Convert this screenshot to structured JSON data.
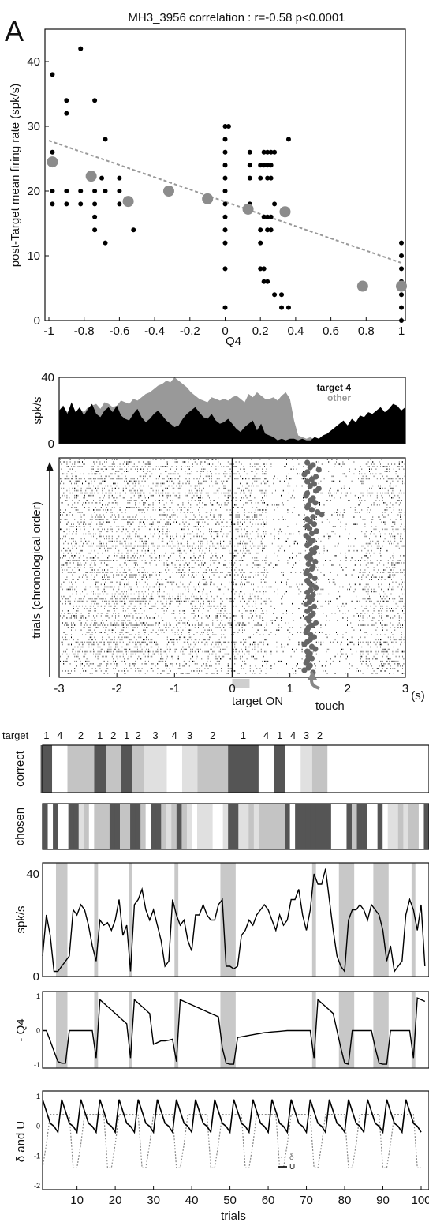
{
  "panel_letter": "A",
  "chart_data": [
    {
      "type": "scatter",
      "title": "MH3_3956 correlation : r=-0.58     p<0.0001",
      "xlabel": "Q4",
      "ylabel": "post-Target mean firing rate (spk/s)",
      "xlim": [
        -1,
        1
      ],
      "ylim": [
        0,
        45
      ],
      "xticks": [
        "-1",
        "-0.8",
        "-0.6",
        "-0.4",
        "-0.2",
        "0",
        "0.2",
        "0.4",
        "0.6",
        "0.8",
        "1"
      ],
      "yticks": [
        "0",
        "10",
        "20",
        "30",
        "40"
      ],
      "series": [
        {
          "marker": "small-black",
          "points": [
            [
              -0.98,
              38
            ],
            [
              -0.98,
              26
            ],
            [
              -0.98,
              20
            ],
            [
              -0.98,
              18
            ],
            [
              -0.9,
              34
            ],
            [
              -0.9,
              32
            ],
            [
              -0.9,
              20
            ],
            [
              -0.9,
              18
            ],
            [
              -0.82,
              42
            ],
            [
              -0.82,
              20
            ],
            [
              -0.82,
              18
            ],
            [
              -0.74,
              34
            ],
            [
              -0.74,
              20
            ],
            [
              -0.74,
              18
            ],
            [
              -0.74,
              16
            ],
            [
              -0.74,
              14
            ],
            [
              -0.7,
              22
            ],
            [
              -0.68,
              28
            ],
            [
              -0.68,
              20
            ],
            [
              -0.68,
              12
            ],
            [
              -0.6,
              22
            ],
            [
              -0.6,
              20
            ],
            [
              -0.6,
              18
            ],
            [
              -0.52,
              14
            ],
            [
              0,
              30
            ],
            [
              0,
              28
            ],
            [
              0,
              26
            ],
            [
              0,
              24
            ],
            [
              0,
              22
            ],
            [
              0,
              20
            ],
            [
              0,
              18
            ],
            [
              0,
              16
            ],
            [
              0,
              14
            ],
            [
              0,
              12
            ],
            [
              0,
              8
            ],
            [
              0,
              2
            ],
            [
              0.02,
              30
            ],
            [
              0.14,
              26
            ],
            [
              0.14,
              24
            ],
            [
              0.14,
              22
            ],
            [
              0.14,
              18
            ],
            [
              0.2,
              24
            ],
            [
              0.2,
              22
            ],
            [
              0.2,
              14
            ],
            [
              0.2,
              12
            ],
            [
              0.2,
              8
            ],
            [
              0.22,
              26
            ],
            [
              0.22,
              24
            ],
            [
              0.22,
              16
            ],
            [
              0.22,
              8
            ],
            [
              0.22,
              6
            ],
            [
              0.24,
              26
            ],
            [
              0.24,
              24
            ],
            [
              0.24,
              22
            ],
            [
              0.24,
              16
            ],
            [
              0.24,
              14
            ],
            [
              0.24,
              6
            ],
            [
              0.26,
              26
            ],
            [
              0.26,
              24
            ],
            [
              0.26,
              22
            ],
            [
              0.26,
              16
            ],
            [
              0.26,
              14
            ],
            [
              0.28,
              26
            ],
            [
              0.28,
              18
            ],
            [
              0.28,
              4
            ],
            [
              0.32,
              4
            ],
            [
              0.32,
              2
            ],
            [
              0.36,
              28
            ],
            [
              0.36,
              2
            ],
            [
              1,
              12
            ],
            [
              1,
              10
            ],
            [
              1,
              8
            ],
            [
              1,
              6
            ],
            [
              1,
              4
            ],
            [
              1,
              2
            ],
            [
              1,
              0
            ]
          ]
        },
        {
          "marker": "large-gray",
          "points": [
            [
              -0.98,
              24.5
            ],
            [
              -0.76,
              22.3
            ],
            [
              -0.55,
              18.4
            ],
            [
              -0.32,
              20
            ],
            [
              -0.1,
              18.8
            ],
            [
              0.13,
              17.2
            ],
            [
              0.34,
              16.8
            ],
            [
              0.78,
              5.3
            ],
            [
              1,
              5.3
            ]
          ]
        },
        {
          "marker": "dashed-fit",
          "points": [
            [
              -1,
              27.8
            ],
            [
              1,
              8.9
            ]
          ]
        }
      ]
    },
    {
      "type": "area",
      "ylabel": "spk/s",
      "yticks": [
        "0",
        "40"
      ],
      "ylim": [
        0,
        40
      ],
      "xlim": [
        -3,
        3
      ],
      "legend_placement": "top-right",
      "series": [
        {
          "name": "target 4",
          "color": "#000000",
          "values": [
            20,
            23,
            18,
            25,
            19,
            22,
            17,
            21,
            24,
            18,
            16,
            20,
            22,
            19,
            23,
            17,
            15,
            14,
            18,
            21,
            16,
            13,
            15,
            18,
            20,
            17,
            14,
            12,
            10,
            11,
            15,
            18,
            20,
            22,
            19,
            16,
            15,
            18,
            14,
            12,
            13,
            15,
            12,
            9,
            7,
            10,
            12,
            14,
            8,
            12,
            6,
            5,
            4,
            2,
            3,
            2,
            3,
            3,
            2,
            3,
            2,
            2,
            4,
            3,
            5,
            6,
            8,
            10,
            12,
            14,
            11,
            15,
            13,
            17,
            16,
            19,
            18,
            20,
            22,
            19,
            21,
            24,
            23,
            20,
            22
          ]
        },
        {
          "name": "other",
          "color": "#999999",
          "values": [
            20,
            22,
            19,
            23,
            18,
            21,
            19,
            22,
            23,
            24,
            21,
            25,
            24,
            22,
            23,
            26,
            25,
            24,
            27,
            26,
            28,
            30,
            31,
            33,
            35,
            36,
            38,
            37,
            40,
            38,
            36,
            34,
            31,
            29,
            27,
            26,
            25,
            28,
            27,
            26,
            27,
            26,
            28,
            29,
            27,
            25,
            30,
            28,
            31,
            29,
            27,
            27,
            28,
            26,
            29,
            31,
            27,
            14,
            5,
            4,
            3,
            4,
            2,
            3,
            4,
            3,
            5,
            3,
            4,
            5,
            3,
            2,
            3,
            2,
            2,
            3,
            3,
            4,
            5,
            6,
            5,
            6,
            5,
            5,
            6
          ]
        }
      ]
    },
    {
      "type": "scatter",
      "ylabel": "trials (chronological order)",
      "xlim": [
        -3,
        3
      ],
      "xticks": [
        "-3",
        "-2",
        "-1",
        "0",
        "1",
        "2",
        "3"
      ],
      "xunit": "(s)",
      "annotations": {
        "target_on": "target ON",
        "touch": "touch"
      },
      "target_on_window": [
        0,
        0.3
      ],
      "touch_times": [
        1.3,
        1.4,
        1.35,
        1.5,
        1.3,
        1.25,
        1.45,
        1.38,
        1.3,
        1.42,
        1.35,
        1.5,
        1.45,
        1.3,
        1.28,
        1.4,
        1.36,
        1.44,
        1.32,
        1.3,
        1.38,
        1.48,
        1.55,
        1.4,
        1.3,
        1.35,
        1.42,
        1.3,
        1.34,
        1.46,
        1.38,
        1.28,
        1.32,
        1.4,
        1.35,
        1.3,
        1.45,
        1.38,
        1.42,
        1.35,
        1.3,
        1.36,
        1.44,
        1.32,
        1.4,
        1.38,
        1.3,
        1.28,
        1.35,
        1.43,
        1.3,
        1.33,
        1.38,
        1.45,
        1.36,
        1.3,
        1.4,
        1.32,
        1.38,
        1.34,
        1.28,
        1.42,
        1.35,
        1.3,
        1.4,
        1.36,
        1.3,
        1.33,
        1.45,
        1.38,
        1.32,
        1.3,
        1.28,
        1.36,
        1.42,
        1.35,
        1.3,
        1.25,
        1.38,
        1.44,
        1.3,
        1.35,
        1.32,
        1.38,
        1.3,
        1.28,
        1.35,
        1.32,
        1.25,
        1.4
      ]
    },
    {
      "type": "table",
      "row_label": "correct",
      "header_label": "target",
      "target_labels": [
        "1",
        "4",
        "2",
        "1",
        "2",
        "1",
        "2",
        "3",
        "4",
        "3",
        "2",
        "1",
        "4",
        "1",
        "4",
        "3",
        "2"
      ],
      "blocks": [
        [
          1,
          3,
          1
        ],
        [
          4,
          7,
          4
        ],
        [
          8,
          14,
          2
        ],
        [
          15,
          17,
          1
        ],
        [
          18,
          21,
          2
        ],
        [
          22,
          24,
          1
        ],
        [
          25,
          27,
          2
        ],
        [
          28,
          33,
          3
        ],
        [
          34,
          37,
          4
        ],
        [
          38,
          41,
          3
        ],
        [
          42,
          49,
          2
        ],
        [
          50,
          57,
          1
        ],
        [
          58,
          61,
          4
        ],
        [
          62,
          64,
          1
        ],
        [
          65,
          68,
          4
        ],
        [
          69,
          71,
          3
        ],
        [
          72,
          75,
          2
        ]
      ],
      "colors": {
        "1": "#555555",
        "2": "#c4c4c4",
        "3": "#e0e0e0",
        "4": "#ffffff"
      }
    },
    {
      "type": "table",
      "row_label": "chosen",
      "choices": [
        1,
        4,
        1,
        4,
        4,
        1,
        1,
        3,
        2,
        4,
        2,
        2,
        2,
        1,
        1,
        2,
        2,
        1,
        1,
        2,
        4,
        1,
        1,
        2,
        3,
        2,
        1,
        2,
        3,
        4,
        3,
        3,
        3,
        4,
        4,
        3,
        1,
        1,
        3,
        3,
        2,
        3,
        2,
        2,
        2,
        2,
        2,
        1,
        4,
        1,
        1,
        1,
        1,
        1,
        1,
        1,
        4,
        4,
        4,
        1,
        2,
        1,
        1,
        4,
        4,
        1,
        4,
        3,
        3,
        2,
        3,
        2,
        2,
        4,
        1
      ]
    },
    {
      "type": "line",
      "ylabel": "spk/s",
      "ylim": [
        0,
        40
      ],
      "yticks": [
        "0",
        "40"
      ],
      "shaded_trials": [
        [
          4.5,
          7.5
        ],
        [
          14.5,
          15.5
        ],
        [
          23.5,
          24.5
        ],
        [
          35.5,
          36.5
        ],
        [
          47.5,
          51.5
        ],
        [
          71.5,
          72.5
        ],
        [
          78.5,
          82.5
        ],
        [
          87.5,
          91.5
        ],
        [
          97.5,
          98.5
        ]
      ],
      "values": [
        8,
        24,
        16,
        2,
        2,
        4,
        6,
        8,
        26,
        24,
        28,
        26,
        20,
        12,
        6,
        22,
        20,
        21,
        18,
        22,
        30,
        16,
        20,
        2,
        28,
        30,
        34,
        26,
        22,
        26,
        20,
        14,
        4,
        6,
        30,
        24,
        20,
        22,
        14,
        10,
        24,
        24,
        28,
        24,
        22,
        22,
        28,
        30,
        4,
        4,
        3,
        4,
        16,
        18,
        22,
        20,
        24,
        26,
        28,
        26,
        22,
        18,
        24,
        20,
        22,
        30,
        30,
        34,
        24,
        18,
        26,
        40,
        36,
        36,
        42,
        30,
        18,
        8,
        4,
        2,
        22,
        26,
        26,
        28,
        26,
        22,
        28,
        26,
        24,
        18,
        6,
        12,
        2,
        4,
        6,
        24,
        30,
        26,
        18,
        28,
        4
      ]
    },
    {
      "type": "line",
      "ylabel": "- Q4",
      "ylim": [
        -1,
        1
      ],
      "yticks": [
        "-1",
        "0",
        "1"
      ],
      "shaded_trials": [
        [
          4.5,
          7.5
        ],
        [
          14.5,
          15.5
        ],
        [
          23.5,
          24.5
        ],
        [
          35.5,
          36.5
        ],
        [
          47.5,
          51.5
        ],
        [
          71.5,
          72.5
        ],
        [
          78.5,
          82.5
        ],
        [
          87.5,
          91.5
        ],
        [
          97.5,
          98.5
        ]
      ],
      "values": [
        0,
        0,
        -0.3,
        -0.6,
        -0.9,
        -0.95,
        -0.95,
        0,
        0,
        0,
        0,
        0,
        0,
        0,
        -0.8,
        0.9,
        0.8,
        0.7,
        0.6,
        0.5,
        0.4,
        0.3,
        0.2,
        -0.8,
        0.9,
        0.8,
        0.7,
        0.6,
        0.5,
        -0.4,
        -0.35,
        -0.3,
        -0.3,
        -0.28,
        -0.25,
        -0.9,
        0.9,
        0.85,
        0.8,
        0.75,
        0.7,
        0.65,
        0.6,
        0.55,
        0.5,
        0.45,
        0.4,
        -0.5,
        -0.95,
        -0.98,
        -0.98,
        -0.2,
        -0.18,
        -0.16,
        -0.14,
        -0.12,
        -0.1,
        -0.08,
        -0.06,
        -0.05,
        -0.04,
        -0.03,
        -0.02,
        -0.01,
        0,
        0,
        0,
        0,
        0,
        0,
        0,
        -0.8,
        0.9,
        0.8,
        0.7,
        0.6,
        0.5,
        0,
        -0.5,
        -0.95,
        -0.98,
        0,
        0,
        0,
        0,
        0,
        0,
        -0.5,
        -0.95,
        -0.98,
        -0.98,
        0,
        0,
        0,
        0,
        0,
        0,
        -0.8,
        0.95,
        0.9,
        0.85
      ]
    },
    {
      "type": "line",
      "ylabel": "δ and U",
      "xlabel": "trials",
      "ylim": [
        -2,
        1
      ],
      "yticks": [
        "-2",
        "-1",
        "0",
        "1"
      ],
      "xticks": [
        "10",
        "20",
        "30",
        "40",
        "50",
        "60",
        "70",
        "80",
        "90",
        "100"
      ],
      "legend_placement": "bottom-right",
      "series": [
        {
          "name": "δ",
          "style": "dotted"
        },
        {
          "name": "U",
          "style": "solid"
        }
      ]
    }
  ]
}
